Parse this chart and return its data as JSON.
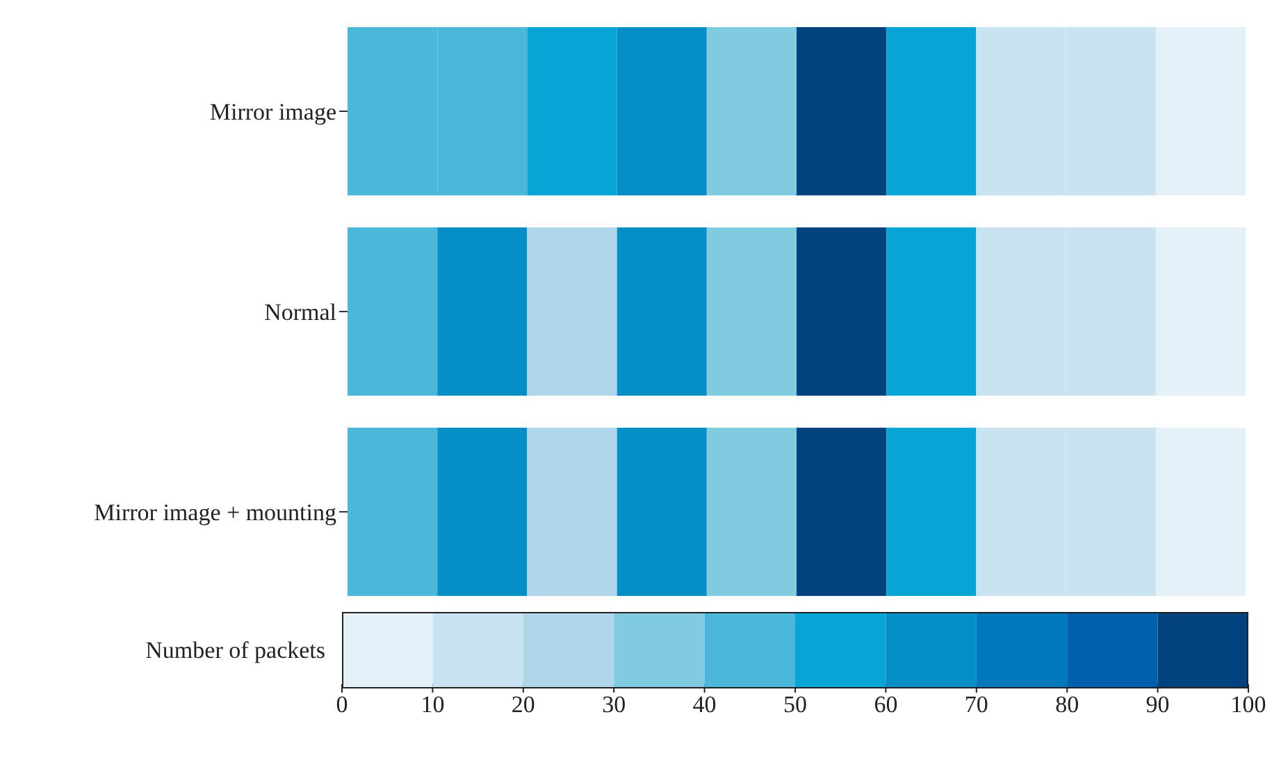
{
  "chart_data": {
    "type": "heatmap",
    "clabel": "Number of packets",
    "categories": [
      null,
      null,
      null,
      null,
      null,
      null,
      null,
      null,
      null,
      null
    ],
    "y_categories": [
      "Mirror image",
      "Normal",
      "Mirror image + mounting"
    ],
    "cells": [
      [
        44,
        47,
        53,
        62,
        33,
        97,
        55,
        15,
        14,
        5
      ],
      [
        42,
        68,
        25,
        68,
        33,
        97,
        55,
        15,
        14,
        5
      ],
      [
        42,
        68,
        25,
        68,
        33,
        97,
        55,
        15,
        14,
        5
      ]
    ],
    "clim": [
      0,
      100
    ],
    "cticks": [
      0,
      10,
      20,
      30,
      40,
      50,
      60,
      70,
      80,
      90,
      100
    ]
  }
}
